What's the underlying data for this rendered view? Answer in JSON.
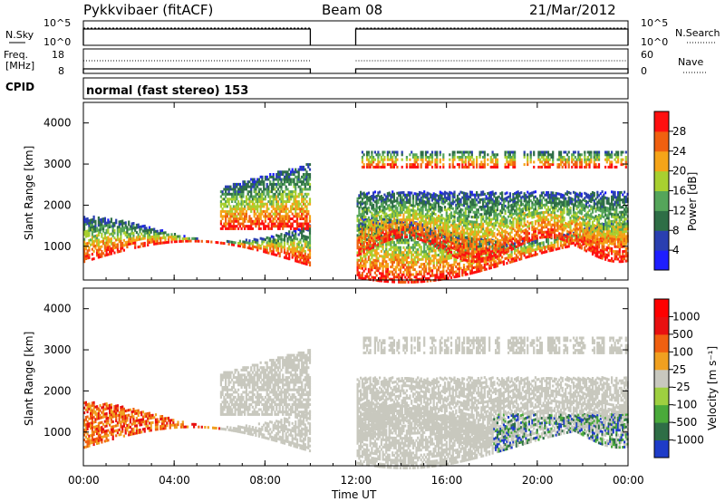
{
  "header": {
    "radar": "Pykkvibaer (fitACF)",
    "beam": "Beam 08",
    "date": "21/Mar/2012"
  },
  "noise_panel": {
    "left_label": "N.Sky",
    "right_label": "N.Search",
    "left_ticks": [
      "10^5",
      "10^0"
    ],
    "right_ticks": [
      "10^5",
      "10^0"
    ]
  },
  "freq_panel": {
    "left_label_line1": "Freq.",
    "left_label_line2": "[MHz]",
    "right_label": "Nave",
    "left_ticks": [
      "18",
      "8"
    ],
    "right_ticks": [
      "60",
      "0"
    ]
  },
  "cpid": {
    "label": "CPID",
    "program": "normal (fast stereo) 153"
  },
  "chart_data": [
    {
      "type": "heatmap",
      "title": "",
      "ylabel": "Slant Range [km]",
      "xlabel": "",
      "x_range_hours": [
        0,
        24
      ],
      "ylim": [
        180,
        4500
      ],
      "y_ticks": [
        "1000",
        "2000",
        "3000",
        "4000"
      ],
      "data_gap_hours": [
        10,
        12
      ],
      "colorbar": {
        "label": "Power [dB]",
        "ticks": [
          "4",
          "8",
          "12",
          "16",
          "20",
          "24",
          "28"
        ],
        "colors": [
          "#1e1eff",
          "#2a3fb0",
          "#2e6e46",
          "#55a55a",
          "#a8d030",
          "#f5a418",
          "#f06010",
          "#ff1010"
        ]
      }
    },
    {
      "type": "heatmap",
      "title": "",
      "ylabel": "Slant Range [km]",
      "xlabel": "Time UT",
      "x_range_hours": [
        0,
        24
      ],
      "x_ticks": [
        "00:00",
        "04:00",
        "08:00",
        "12:00",
        "16:00",
        "20:00",
        "00:00"
      ],
      "ylim": [
        180,
        4500
      ],
      "y_ticks": [
        "1000",
        "2000",
        "3000",
        "4000"
      ],
      "data_gap_hours": [
        10,
        12
      ],
      "colorbar": {
        "label": "Velocity  [m s⁻¹]",
        "ticks": [
          "1000",
          "500",
          "100",
          "25",
          "-25",
          "-100",
          "-500",
          "-1000"
        ],
        "colors": [
          "#1e3cc8",
          "#2e6e46",
          "#4aaa3a",
          "#9ed040",
          "#c8c8be",
          "#f0a020",
          "#f06010",
          "#e81010",
          "#ff0000"
        ]
      }
    }
  ]
}
